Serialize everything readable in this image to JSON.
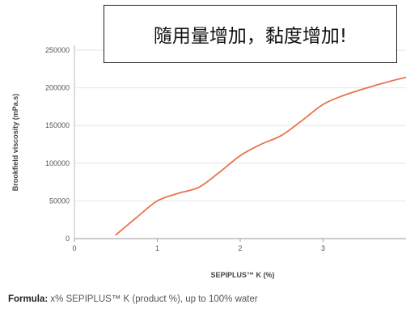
{
  "chart_data": {
    "type": "line",
    "xlabel": "SEPIPLUS™ K (%)",
    "ylabel": "Brookfield viscosity (mPa.s)",
    "xlim": [
      0,
      4
    ],
    "ylim": [
      0,
      250000
    ],
    "x_ticks": [
      0,
      1,
      2,
      3
    ],
    "y_ticks": [
      0,
      50000,
      100000,
      150000,
      200000,
      250000
    ],
    "grid": "horizontal",
    "series": [
      {
        "color": "#e8734a",
        "x": [
          0.5,
          0.75,
          1.0,
          1.25,
          1.5,
          1.75,
          2.0,
          2.25,
          2.5,
          2.75,
          3.0,
          3.25,
          3.5,
          3.75,
          4.0
        ],
        "y": [
          5000,
          28000,
          50000,
          60000,
          68000,
          88000,
          110000,
          125000,
          137000,
          157000,
          178000,
          190000,
          199000,
          207000,
          214000
        ]
      }
    ]
  },
  "annotation": {
    "text": "隨用量增加，黏度增加!"
  },
  "caption": {
    "label": "Formula:",
    "text": " x% SEPIPLUS™ K (product %), up to 100% water"
  }
}
